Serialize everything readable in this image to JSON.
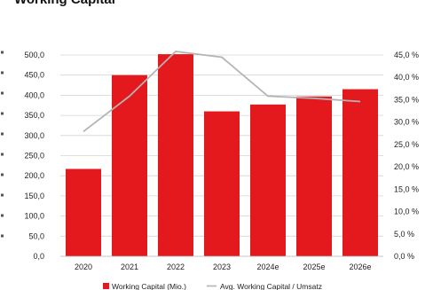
{
  "title": "Working Capital",
  "chart_data": {
    "type": "bar",
    "categories": [
      "2020",
      "2021",
      "2022",
      "2023",
      "2024e",
      "2025e",
      "2026e"
    ],
    "series": [
      {
        "name": "Working Capital (Mio.)",
        "type": "bar",
        "axis": "left",
        "color": "#e3191e",
        "values": [
          217,
          450,
          502,
          360,
          377,
          397,
          415
        ]
      },
      {
        "name": "Avg. Working Capital / Umsatz",
        "type": "line",
        "axis": "right",
        "color": "#b4b4b4",
        "values": [
          27.9,
          35.8,
          45.8,
          44.5,
          35.8,
          35.3,
          34.6
        ]
      }
    ],
    "ylim_left": [
      0,
      500
    ],
    "yticks_left": [
      "0,0",
      "50,0",
      "100,0",
      "150,0",
      "200,0",
      "250,0",
      "300,0",
      "350,0",
      "400,0",
      "450,0",
      "500,0"
    ],
    "ylim_right": [
      0,
      45
    ],
    "yticks_right": [
      "0,0 %",
      "5,0 %",
      "10,0 %",
      "15,0 %",
      "20,0 %",
      "25,0 %",
      "30,0 %",
      "35,0 %",
      "40,0 %",
      "45,0 %"
    ],
    "grid": true,
    "legend": "bottom"
  }
}
